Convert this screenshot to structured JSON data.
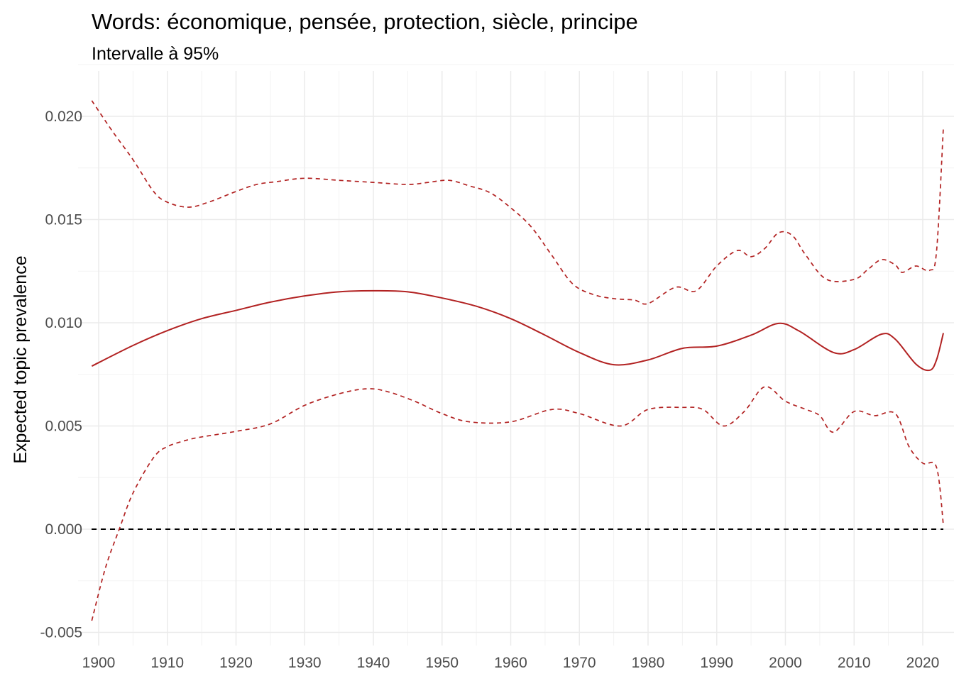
{
  "chart_data": {
    "type": "line",
    "title": "Words: économique, pensée, protection, siècle, principe",
    "subtitle": "Intervalle à 95%",
    "xlabel": "",
    "ylabel": "Expected topic prevalence",
    "xlim": [
      1899,
      2023
    ],
    "ylim": [
      -0.0055,
      0.0221
    ],
    "x_ticks": [
      "1900",
      "1910",
      "1920",
      "1930",
      "1940",
      "1950",
      "1960",
      "1970",
      "1980",
      "1990",
      "2000",
      "2010",
      "2020"
    ],
    "y_ticks": [
      "-0.005",
      "0.000",
      "0.005",
      "0.010",
      "0.015",
      "0.020"
    ],
    "grid": true,
    "reference_line": 0,
    "colors": {
      "series": "#b22222",
      "reference": "#000000",
      "grid": "#ebebeb"
    },
    "series": [
      {
        "name": "mean",
        "style": "solid",
        "x": [
          1899,
          1905,
          1910,
          1915,
          1920,
          1925,
          1930,
          1935,
          1940,
          1945,
          1950,
          1955,
          1960,
          1965,
          1970,
          1975,
          1980,
          1985,
          1990,
          1995,
          1999,
          2002,
          2007,
          2010,
          2014,
          2016,
          2019,
          2021,
          2022,
          2023
        ],
        "y": [
          0.0079,
          0.0089,
          0.00962,
          0.0102,
          0.0106,
          0.011,
          0.0113,
          0.0115,
          0.01155,
          0.0115,
          0.0112,
          0.0108,
          0.0102,
          0.0094,
          0.00856,
          0.00797,
          0.0082,
          0.00876,
          0.00887,
          0.0094,
          0.00997,
          0.0096,
          0.00856,
          0.0087,
          0.00945,
          0.0092,
          0.008,
          0.0077,
          0.0082,
          0.0095
        ]
      },
      {
        "name": "upper 95%",
        "style": "dashed",
        "x": [
          1899,
          1902,
          1905,
          1908,
          1910,
          1913,
          1916,
          1920,
          1923,
          1926,
          1930,
          1935,
          1940,
          1945,
          1948,
          1951,
          1954,
          1957,
          1960,
          1963,
          1966,
          1969,
          1972,
          1975,
          1978,
          1980,
          1984,
          1987,
          1990,
          1993,
          1995,
          1997,
          1999,
          2001,
          2003,
          2006,
          2010,
          2012,
          2014,
          2016,
          2017,
          2019,
          2021,
          2022,
          2023
        ],
        "y": [
          0.02076,
          0.01928,
          0.0179,
          0.01636,
          0.01584,
          0.0156,
          0.01584,
          0.01636,
          0.0167,
          0.01684,
          0.017,
          0.0169,
          0.0168,
          0.0167,
          0.0168,
          0.0169,
          0.01663,
          0.0163,
          0.01557,
          0.01464,
          0.01326,
          0.01189,
          0.01137,
          0.01117,
          0.0111,
          0.01093,
          0.01172,
          0.01155,
          0.01275,
          0.0135,
          0.0132,
          0.0136,
          0.01436,
          0.01423,
          0.01326,
          0.0121,
          0.0121,
          0.01258,
          0.01306,
          0.0128,
          0.01244,
          0.01275,
          0.01254,
          0.01344,
          0.01945
        ]
      },
      {
        "name": "lower 95%",
        "style": "dashed",
        "x": [
          1899,
          1901,
          1903,
          1905,
          1908,
          1910,
          1913,
          1915,
          1920,
          1925,
          1930,
          1935,
          1939,
          1942,
          1946,
          1950,
          1954,
          1960,
          1966,
          1970,
          1976,
          1980,
          1985,
          1988,
          1991,
          1994,
          1997,
          2000,
          2003,
          2005,
          2007,
          2010,
          2013,
          2016,
          2018,
          2020,
          2022,
          2023
        ],
        "y": [
          -0.00443,
          -0.00186,
          0.0,
          0.00175,
          0.00347,
          0.004,
          0.00433,
          0.00447,
          0.00474,
          0.0051,
          0.006,
          0.00656,
          0.0068,
          0.00667,
          0.0062,
          0.0056,
          0.0052,
          0.0052,
          0.0058,
          0.0056,
          0.005,
          0.0058,
          0.0059,
          0.0058,
          0.005,
          0.0057,
          0.0069,
          0.0062,
          0.0058,
          0.0055,
          0.0047,
          0.0057,
          0.0055,
          0.0056,
          0.004,
          0.0032,
          0.003,
          0.0002
        ]
      }
    ]
  }
}
